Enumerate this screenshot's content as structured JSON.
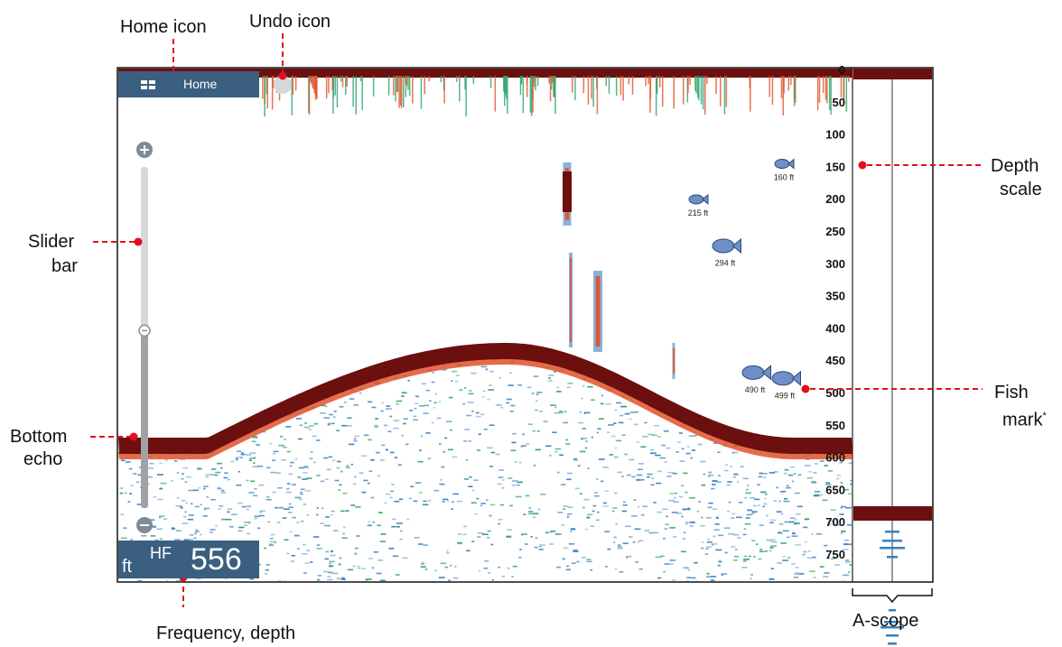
{
  "callouts": {
    "home_icon": "Home icon",
    "undo_icon": "Undo icon",
    "slider_bar_line1": "Slider",
    "slider_bar_line2": "bar",
    "bottom_echo_line1": "Bottom",
    "bottom_echo_line2": "echo",
    "depth_scale_line1": "Depth",
    "depth_scale_line2": "scale",
    "fish_mark_line1": "Fish",
    "fish_mark_line2": "mark",
    "fish_mark_note": "*",
    "freq_depth": "Frequency, depth",
    "ascope": "A-scope"
  },
  "home_button": {
    "label": "Home"
  },
  "readout": {
    "unit": "ft",
    "band": "HF",
    "depth": "556"
  },
  "depth_scale": [
    "0",
    "50",
    "100",
    "150",
    "200",
    "250",
    "300",
    "350",
    "400",
    "450",
    "500",
    "550",
    "600",
    "650",
    "700",
    "750"
  ],
  "fish_marks": [
    {
      "label": "160 ft",
      "size": "small",
      "depth": 160
    },
    {
      "label": "215 ft",
      "size": "small",
      "depth": 215
    },
    {
      "label": "294 ft",
      "size": "large",
      "depth": 294
    },
    {
      "label": "490 ft",
      "size": "large",
      "depth": 490
    },
    {
      "label": "499 ft",
      "size": "large",
      "depth": 499
    }
  ],
  "slider": {
    "level": 0.52
  },
  "colors": {
    "echo_strong": "#6b0f0f",
    "echo_mid": "#e0522a",
    "echo_weak": "#3a7fc2",
    "echo_faint": "#2aa36b",
    "panel": "#3b5f80",
    "callout_dot": "#e0101e"
  }
}
